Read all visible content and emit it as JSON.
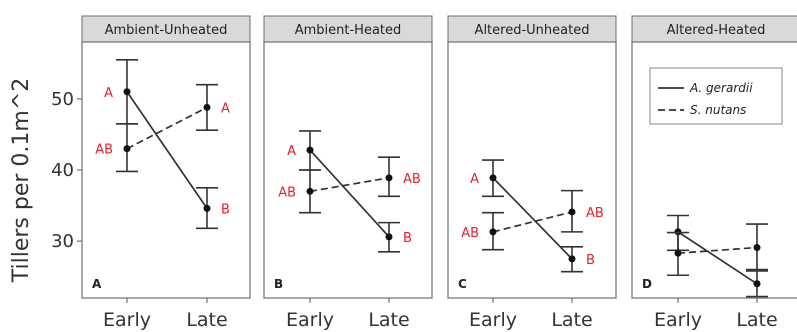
{
  "chart_data": {
    "type": "line",
    "ylabel": "Tillers per 0.1m^2",
    "categories": [
      "Early",
      "Late"
    ],
    "ylim": [
      22,
      58
    ],
    "yticks": [
      30,
      40,
      50
    ],
    "legend": {
      "placement": "top-right (in panel D)",
      "entries": [
        {
          "name": "A. gerardii",
          "linestyle": "solid"
        },
        {
          "name": "S. nutans",
          "linestyle": "dashed"
        }
      ]
    },
    "panels": [
      {
        "strip": "Ambient-Unheated",
        "corner": "A",
        "series": [
          {
            "name": "A. gerardii",
            "values": [
              51,
              34.6
            ],
            "lower": [
              46.5,
              31.8
            ],
            "upper": [
              55.5,
              37.5
            ],
            "sig": [
              "A",
              "B"
            ]
          },
          {
            "name": "S. nutans",
            "values": [
              43,
              48.8
            ],
            "lower": [
              39.8,
              45.6
            ],
            "upper": [
              46.5,
              52
            ],
            "sig": [
              "AB",
              "A"
            ]
          }
        ]
      },
      {
        "strip": "Ambient-Heated",
        "corner": "B",
        "series": [
          {
            "name": "A. gerardii",
            "values": [
              42.8,
              30.6
            ],
            "lower": [
              40,
              28.5
            ],
            "upper": [
              45.5,
              32.6
            ],
            "sig": [
              "A",
              "B"
            ]
          },
          {
            "name": "S. nutans",
            "values": [
              37,
              38.9
            ],
            "lower": [
              34,
              36.3
            ],
            "upper": [
              40,
              41.8
            ],
            "sig": [
              "AB",
              "AB"
            ]
          }
        ]
      },
      {
        "strip": "Altered-Unheated",
        "corner": "C",
        "series": [
          {
            "name": "A. gerardii",
            "values": [
              38.9,
              27.5
            ],
            "lower": [
              36.3,
              25.7
            ],
            "upper": [
              41.4,
              29.2
            ],
            "sig": [
              "A",
              "B"
            ]
          },
          {
            "name": "S. nutans",
            "values": [
              31.3,
              34.1
            ],
            "lower": [
              28.8,
              31.3
            ],
            "upper": [
              34,
              37.1
            ],
            "sig": [
              "AB",
              "AB"
            ]
          }
        ]
      },
      {
        "strip": "Altered-Heated",
        "corner": "D",
        "series": [
          {
            "name": "A. gerardii",
            "values": [
              31.3,
              24
            ],
            "lower": [
              28.7,
              22.2
            ],
            "upper": [
              33.6,
              25.8
            ],
            "sig": [
              "",
              ""
            ]
          },
          {
            "name": "S. nutans",
            "values": [
              28.3,
              29.1
            ],
            "lower": [
              25.2,
              26
            ],
            "upper": [
              31.2,
              32.4
            ],
            "sig": [
              "",
              ""
            ]
          }
        ]
      }
    ]
  }
}
